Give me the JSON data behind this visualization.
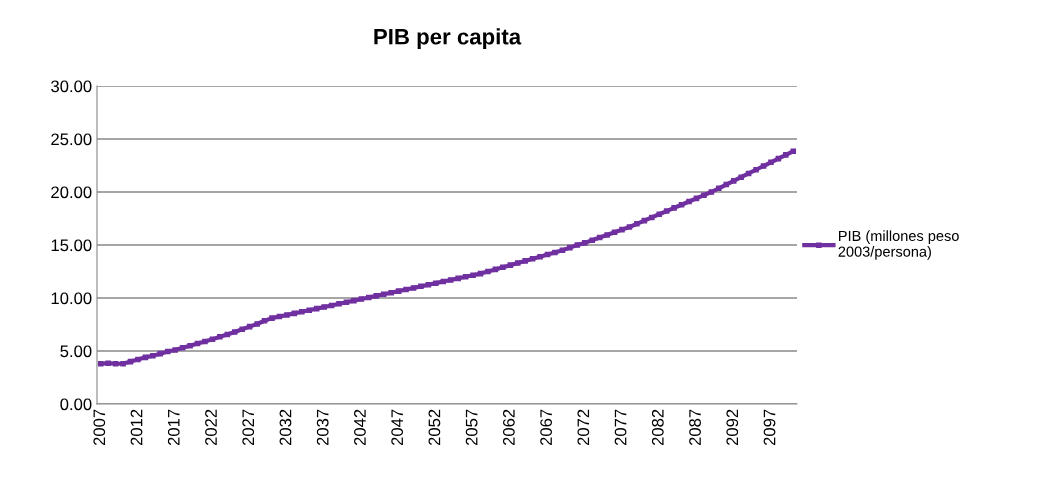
{
  "chart_data": {
    "type": "line",
    "title": "PIB per capita",
    "categories": [
      "2007",
      null,
      null,
      null,
      null,
      "2012",
      null,
      null,
      null,
      null,
      "2017",
      null,
      null,
      null,
      null,
      "2022",
      null,
      null,
      null,
      null,
      "2027",
      null,
      null,
      null,
      null,
      "2032",
      null,
      null,
      null,
      null,
      "2037",
      null,
      null,
      null,
      null,
      "2042",
      null,
      null,
      null,
      null,
      "2047",
      null,
      null,
      null,
      null,
      "2052",
      null,
      null,
      null,
      null,
      "2057",
      null,
      null,
      null,
      null,
      "2062",
      null,
      null,
      null,
      null,
      "2067",
      null,
      null,
      null,
      null,
      "2072",
      null,
      null,
      null,
      null,
      "2077",
      null,
      null,
      null,
      null,
      "2082",
      null,
      null,
      null,
      null,
      "2087",
      null,
      null,
      null,
      null,
      "2092",
      null,
      null,
      null,
      null,
      "2097",
      null,
      null,
      null
    ],
    "series": [
      {
        "name": "PIB (millones peso 2003/persona)",
        "color": "#7030a0",
        "values": [
          3.8,
          3.85,
          3.8,
          3.8,
          4.0,
          4.2,
          4.4,
          4.55,
          4.75,
          4.95,
          5.1,
          5.3,
          5.5,
          5.7,
          5.9,
          6.1,
          6.35,
          6.55,
          6.8,
          7.05,
          7.3,
          7.55,
          7.85,
          8.1,
          8.25,
          8.4,
          8.55,
          8.7,
          8.85,
          9.0,
          9.15,
          9.3,
          9.45,
          9.6,
          9.75,
          9.9,
          10.05,
          10.2,
          10.35,
          10.5,
          10.65,
          10.8,
          10.95,
          11.1,
          11.25,
          11.4,
          11.55,
          11.7,
          11.85,
          12.0,
          12.15,
          12.3,
          12.5,
          12.7,
          12.9,
          13.1,
          13.3,
          13.5,
          13.7,
          13.9,
          14.1,
          14.3,
          14.5,
          14.75,
          15.0,
          15.2,
          15.45,
          15.7,
          15.95,
          16.2,
          16.45,
          16.7,
          17.0,
          17.3,
          17.6,
          17.9,
          18.2,
          18.5,
          18.8,
          19.1,
          19.4,
          19.7,
          20.0,
          20.35,
          20.7,
          21.05,
          21.4,
          21.75,
          22.1,
          22.45,
          22.8,
          23.15,
          23.5,
          23.85
        ]
      }
    ],
    "ylim": [
      0,
      30
    ],
    "yticks": [
      {
        "value": 0,
        "label": "0.00"
      },
      {
        "value": 5,
        "label": "5.00"
      },
      {
        "value": 10,
        "label": "10.00"
      },
      {
        "value": 15,
        "label": "15.00"
      },
      {
        "value": 20,
        "label": "20.00"
      },
      {
        "value": 25,
        "label": "25.00"
      },
      {
        "value": 30,
        "label": "30.00"
      }
    ],
    "grid": "y",
    "legend": "right",
    "marker": "square",
    "line_style": "solid"
  }
}
